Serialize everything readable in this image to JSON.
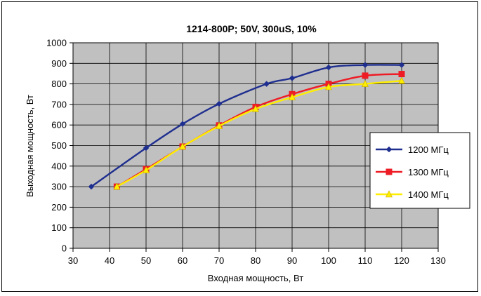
{
  "chart_data": {
    "type": "line",
    "title": "1214-800P; 50V, 300uS, 10%",
    "xlabel": "Входная мощность, Вт",
    "ylabel": "Выходная мощность, Вт",
    "xlim": [
      30,
      130
    ],
    "ylim": [
      0,
      1000
    ],
    "x_ticks": [
      "30",
      "40",
      "50",
      "60",
      "70",
      "80",
      "90",
      "100",
      "110",
      "120",
      "130"
    ],
    "y_ticks": [
      "0",
      "100",
      "200",
      "300",
      "400",
      "500",
      "600",
      "700",
      "800",
      "900",
      "1000"
    ],
    "grid": true,
    "legend_position": "right",
    "series": [
      {
        "name": "1200 МГц",
        "color": "#1f2f8f",
        "marker": "diamond",
        "x": [
          35,
          50,
          60,
          70,
          83,
          90,
          100,
          110,
          120
        ],
        "y": [
          300,
          488,
          605,
          703,
          800,
          828,
          880,
          892,
          892
        ]
      },
      {
        "name": "1300 МГц",
        "color": "#ee1c25",
        "marker": "square",
        "x": [
          42,
          50,
          60,
          70,
          80,
          90,
          100,
          110,
          120
        ],
        "y": [
          300,
          385,
          495,
          598,
          688,
          750,
          800,
          840,
          848
        ]
      },
      {
        "name": "1400 МГц",
        "color": "#ffee00",
        "marker": "triangle",
        "x": [
          42,
          50,
          60,
          70,
          80,
          90,
          100,
          110,
          120
        ],
        "y": [
          300,
          380,
          495,
          595,
          678,
          735,
          785,
          800,
          815
        ]
      }
    ]
  }
}
